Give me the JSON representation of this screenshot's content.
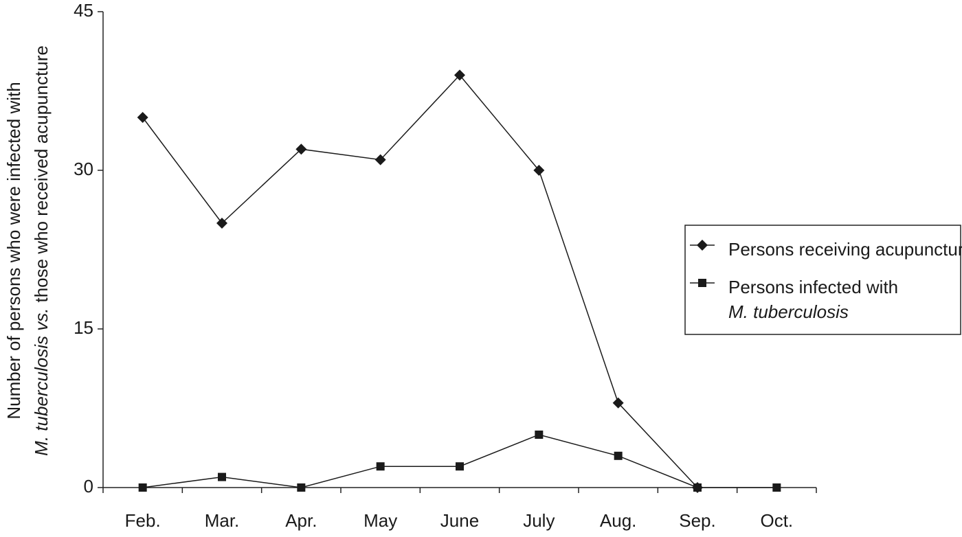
{
  "chart_data": {
    "type": "line",
    "y_label": {
      "line1": "Number of persons who were infected with",
      "line2_italic": "M. tuberculosis vs.",
      "line2": "those who received acupuncture"
    },
    "categories": [
      "Feb.",
      "Mar.",
      "Apr.",
      "May",
      "June",
      "July",
      "Aug.",
      "Sep.",
      "Oct."
    ],
    "series": [
      {
        "name": [
          "Persons receiving acupuncture"
        ],
        "marker": "diamond",
        "color": "#1a1a1a",
        "values": [
          35,
          25,
          32,
          31,
          39,
          30,
          8,
          0,
          null
        ]
      },
      {
        "name": [
          "Persons infected with",
          "M. tuberculosis"
        ],
        "marker": "square",
        "color": "#1a1a1a",
        "values": [
          0,
          1,
          0,
          2,
          2,
          5,
          3,
          0,
          0
        ]
      }
    ],
    "ylim": [
      0,
      45
    ],
    "yticks": [
      0,
      15,
      30,
      45
    ],
    "legend": "right"
  }
}
